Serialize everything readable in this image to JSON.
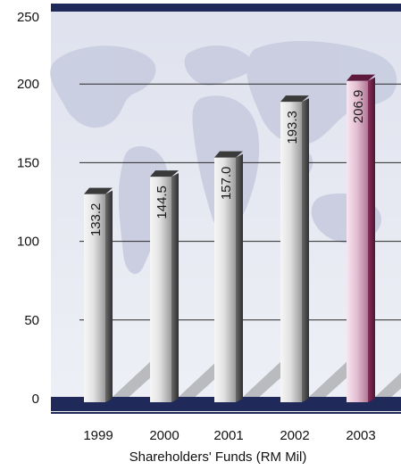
{
  "chart_data": {
    "type": "bar",
    "title": "",
    "xlabel": "Shareholders' Funds (RM Mil)",
    "ylabel": "",
    "categories": [
      "1999",
      "2000",
      "2001",
      "2002",
      "2003"
    ],
    "values": [
      133.2,
      144.5,
      157.0,
      193.3,
      206.9
    ],
    "data_labels": [
      "133.2",
      "144.5",
      "157.0",
      "193.3",
      "206.9"
    ],
    "ylim": [
      0,
      250
    ],
    "yticks": [
      "0",
      "50",
      "100",
      "150",
      "200",
      "250"
    ],
    "grid": true,
    "highlight_category": "2003",
    "colors": {
      "bar": "#b8b8b8",
      "highlight_bar": "#c07aa0",
      "band": "#1f2a5a",
      "grid": "#2a2a2a",
      "map": "#c9cde0"
    }
  }
}
